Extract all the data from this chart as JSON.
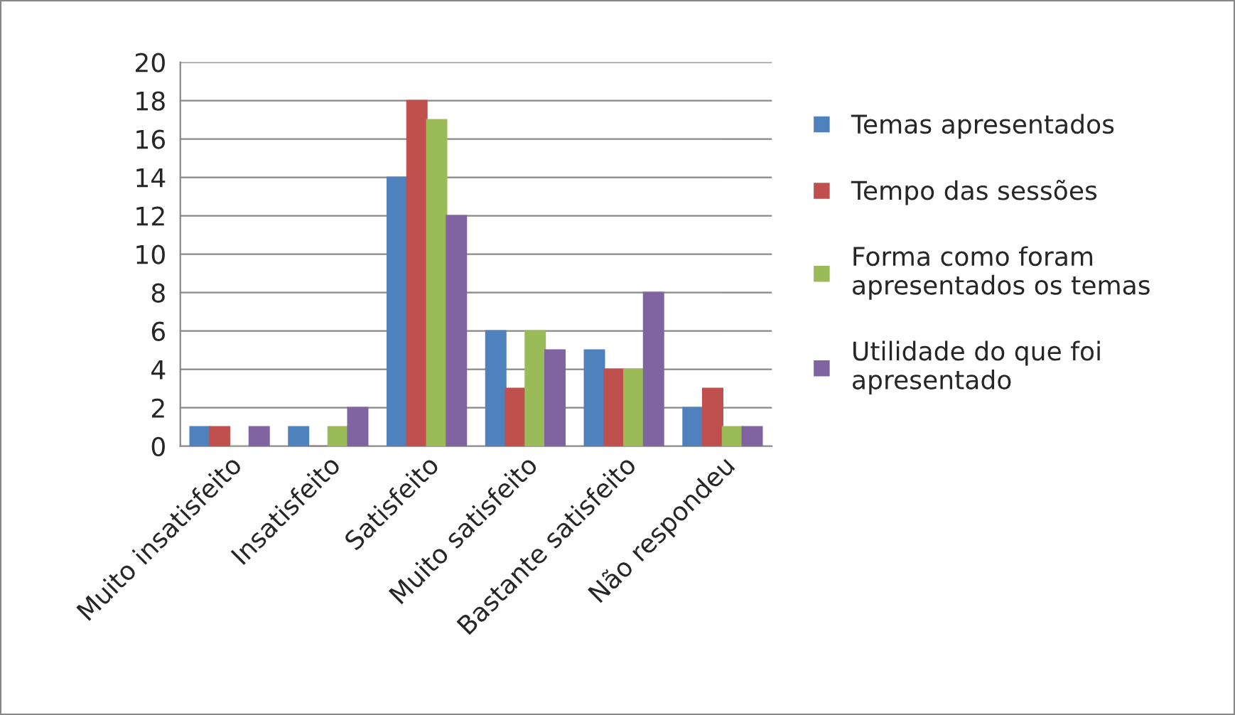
{
  "chart_data": {
    "type": "bar",
    "categories": [
      "Muito insatisfeito",
      "Insatisfeito",
      "Satisfeito",
      "Muito satisfeito",
      "Bastante satisfeito",
      "Não respondeu"
    ],
    "series": [
      {
        "name": "Temas apresentados",
        "color": "#4f81bd",
        "values": [
          1,
          1,
          14,
          6,
          5,
          2
        ]
      },
      {
        "name": "Tempo das sessões",
        "color": "#c0504d",
        "values": [
          1,
          0,
          18,
          3,
          4,
          3
        ]
      },
      {
        "name": "Forma como foram\napresentados os temas",
        "color": "#9bbb59",
        "values": [
          0,
          1,
          17,
          6,
          4,
          1
        ]
      },
      {
        "name": "Utilidade do que foi\napresentado",
        "color": "#8064a2",
        "values": [
          1,
          2,
          12,
          5,
          8,
          1
        ]
      }
    ],
    "ylim": [
      0,
      20
    ],
    "yticks": [
      0,
      2,
      4,
      6,
      8,
      10,
      12,
      14,
      16,
      18,
      20
    ],
    "grid": "y",
    "legend": "right"
  }
}
